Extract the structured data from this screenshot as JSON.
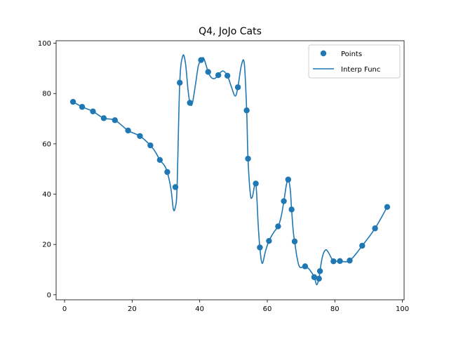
{
  "chart_data": {
    "type": "scatter",
    "title": "Q4, JoJo Cats",
    "xlabel": "",
    "ylabel": "",
    "xlim": [
      -2.5,
      100.5
    ],
    "ylim": [
      -2,
      101
    ],
    "xticks": [
      0,
      20,
      40,
      60,
      80,
      100
    ],
    "yticks": [
      0,
      20,
      40,
      60,
      80,
      100
    ],
    "grid": false,
    "legend_position": "top-right",
    "color": "#1f77b4",
    "series": [
      {
        "name": "Points",
        "kind": "scatter",
        "x": [
          2.5,
          5.2,
          8.4,
          11.6,
          14.9,
          18.8,
          22.3,
          25.4,
          28.2,
          30.4,
          32.8,
          34.1,
          37.1,
          40.4,
          42.5,
          45.5,
          48.2,
          51.3,
          53.9,
          54.3,
          56.6,
          57.8,
          60.5,
          63.2,
          64.9,
          66.2,
          67.2,
          68.1,
          71.2,
          73.9,
          75.3,
          75.6,
          79.6,
          81.5,
          84.4,
          88.1,
          91.9,
          95.5
        ],
        "y": [
          76.7,
          74.7,
          72.9,
          70.2,
          69.4,
          65.3,
          63.1,
          59.4,
          53.6,
          48.8,
          42.8,
          84.3,
          76.3,
          93.3,
          88.6,
          87.3,
          87.1,
          82.5,
          73.3,
          54.1,
          44.2,
          18.8,
          21.4,
          27.2,
          37.2,
          45.8,
          33.9,
          21.2,
          11.3,
          7.0,
          6.4,
          9.4,
          13.3,
          13.4,
          13.6,
          19.5,
          26.4,
          34.9
        ]
      },
      {
        "name": "Interp Func",
        "kind": "line",
        "x": [
          2.5,
          5.2,
          8.4,
          11.6,
          14.9,
          18.8,
          22.3,
          25.4,
          27.0,
          28.2,
          29.5,
          30.4,
          31.5,
          32.2,
          32.8,
          33.3,
          34.1,
          35.0,
          35.8,
          36.5,
          37.1,
          37.8,
          38.8,
          39.6,
          40.4,
          41.2,
          42.5,
          43.5,
          44.5,
          45.5,
          46.8,
          48.2,
          49.3,
          50.5,
          51.3,
          52.3,
          53.2,
          53.9,
          54.3,
          55.0,
          55.6,
          56.6,
          57.3,
          57.8,
          58.5,
          59.5,
          60.5,
          62.0,
          63.2,
          64.1,
          64.9,
          65.7,
          66.2,
          66.8,
          67.2,
          67.7,
          68.1,
          68.8,
          69.6,
          71.2,
          72.5,
          73.9,
          74.6,
          75.3,
          75.6,
          76.3,
          77.2,
          78.0,
          79.0,
          79.6,
          81.5,
          84.4,
          88.1,
          91.9,
          95.5
        ],
        "y": [
          76.7,
          74.7,
          72.9,
          70.2,
          69.4,
          65.3,
          63.1,
          59.4,
          56.5,
          53.6,
          51.5,
          48.8,
          42.0,
          34.0,
          35.0,
          42.8,
          84.3,
          95.0,
          92.0,
          82.0,
          76.3,
          76.0,
          84.0,
          91.0,
          93.3,
          94.0,
          88.6,
          86.3,
          86.0,
          87.3,
          89.0,
          87.1,
          83.0,
          79.0,
          82.5,
          91.0,
          92.0,
          73.3,
          54.1,
          40.0,
          39.0,
          44.2,
          28.0,
          18.8,
          12.5,
          17.5,
          21.4,
          25.0,
          27.2,
          31.0,
          37.2,
          44.0,
          45.8,
          42.0,
          33.9,
          25.0,
          21.2,
          15.0,
          11.0,
          11.3,
          10.0,
          7.0,
          4.0,
          6.4,
          9.4,
          15.0,
          17.8,
          17.0,
          14.5,
          13.3,
          13.4,
          13.6,
          19.5,
          26.4,
          34.9
        ]
      }
    ]
  }
}
